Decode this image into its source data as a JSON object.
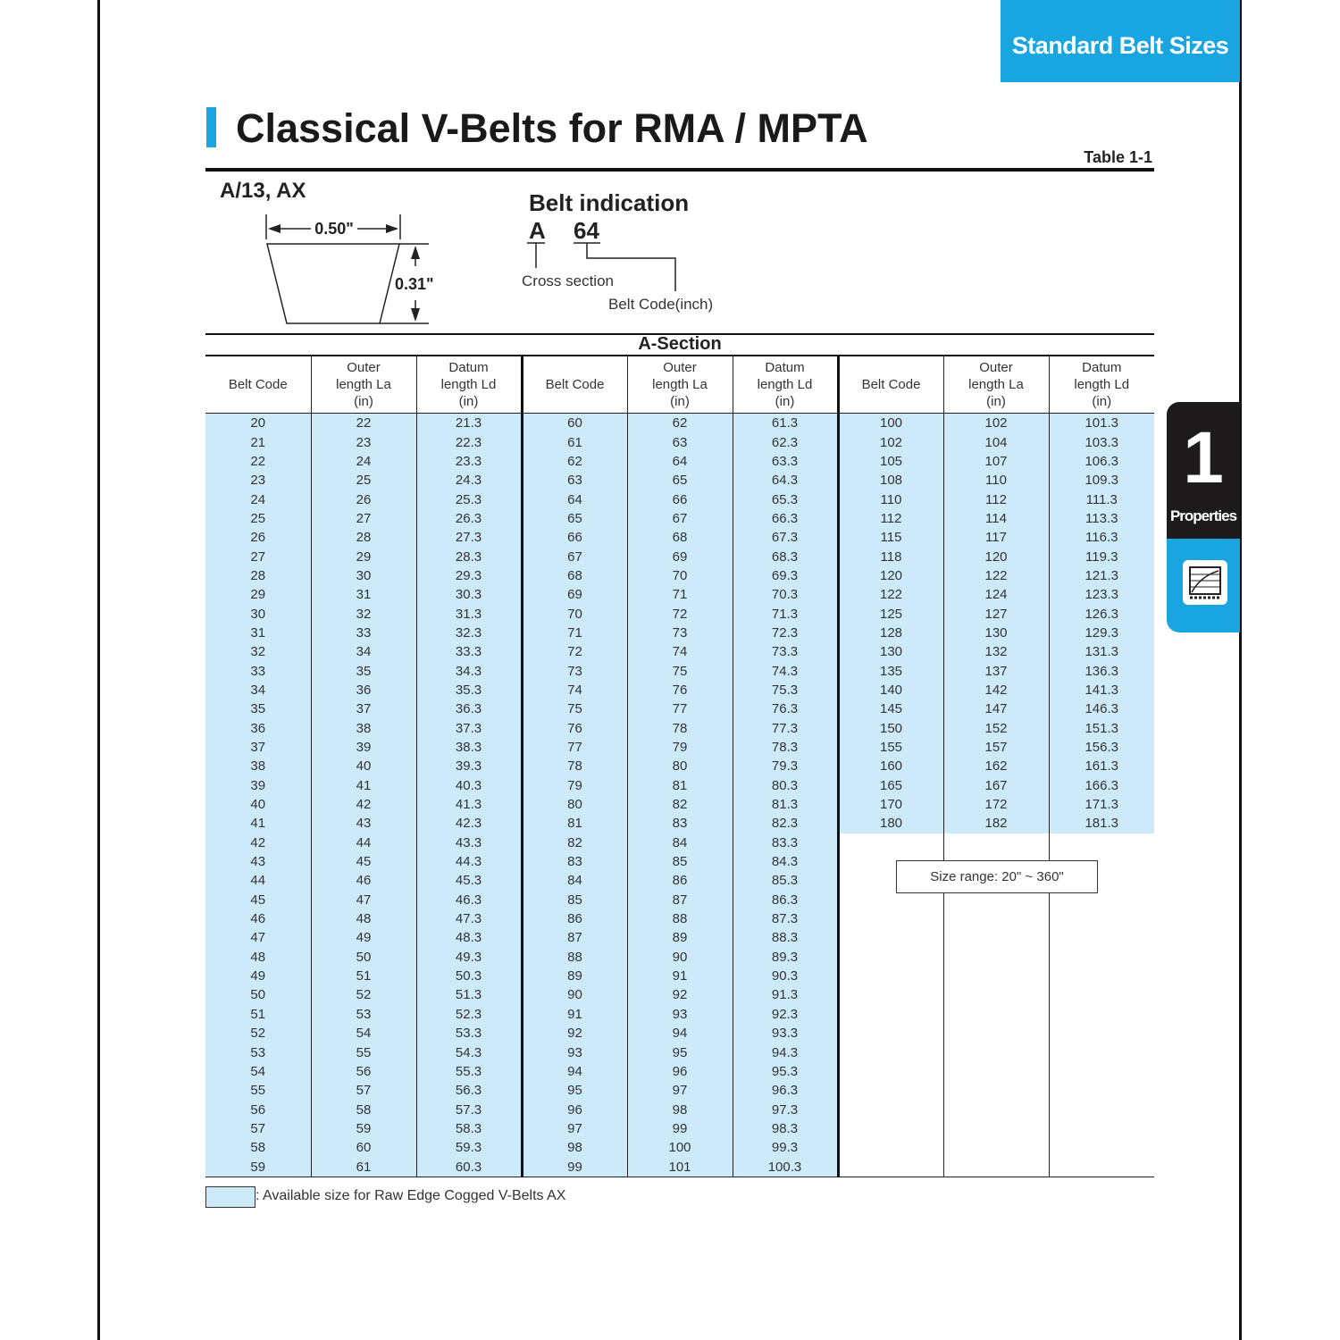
{
  "header_tab": "Standard Belt Sizes",
  "title": "Classical V-Belts for RMA / MPTA",
  "table_number": "Table 1-1",
  "cross_section_label": "A/13, AX",
  "diagram": {
    "top_width": "0.50\"",
    "height": "0.31\""
  },
  "belt_indication": {
    "title": "Belt indication",
    "section_letter": "A",
    "code_example": "64",
    "section_caption": "Cross section",
    "code_caption": "Belt Code(inch)"
  },
  "section_title": "A-Section",
  "columns": [
    "Belt Code",
    "Outer length La (in)",
    "Datum length Ld (in)"
  ],
  "groups": [
    {
      "rows": [
        [
          "20",
          "22",
          "21.3"
        ],
        [
          "21",
          "23",
          "22.3"
        ],
        [
          "22",
          "24",
          "23.3"
        ],
        [
          "23",
          "25",
          "24.3"
        ],
        [
          "24",
          "26",
          "25.3"
        ],
        [
          "25",
          "27",
          "26.3"
        ],
        [
          "26",
          "28",
          "27.3"
        ],
        [
          "27",
          "29",
          "28.3"
        ],
        [
          "28",
          "30",
          "29.3"
        ],
        [
          "29",
          "31",
          "30.3"
        ],
        [
          "30",
          "32",
          "31.3"
        ],
        [
          "31",
          "33",
          "32.3"
        ],
        [
          "32",
          "34",
          "33.3"
        ],
        [
          "33",
          "35",
          "34.3"
        ],
        [
          "34",
          "36",
          "35.3"
        ],
        [
          "35",
          "37",
          "36.3"
        ],
        [
          "36",
          "38",
          "37.3"
        ],
        [
          "37",
          "39",
          "38.3"
        ],
        [
          "38",
          "40",
          "39.3"
        ],
        [
          "39",
          "41",
          "40.3"
        ],
        [
          "40",
          "42",
          "41.3"
        ],
        [
          "41",
          "43",
          "42.3"
        ],
        [
          "42",
          "44",
          "43.3"
        ],
        [
          "43",
          "45",
          "44.3"
        ],
        [
          "44",
          "46",
          "45.3"
        ],
        [
          "45",
          "47",
          "46.3"
        ],
        [
          "46",
          "48",
          "47.3"
        ],
        [
          "47",
          "49",
          "48.3"
        ],
        [
          "48",
          "50",
          "49.3"
        ],
        [
          "49",
          "51",
          "50.3"
        ],
        [
          "50",
          "52",
          "51.3"
        ],
        [
          "51",
          "53",
          "52.3"
        ],
        [
          "52",
          "54",
          "53.3"
        ],
        [
          "53",
          "55",
          "54.3"
        ],
        [
          "54",
          "56",
          "55.3"
        ],
        [
          "55",
          "57",
          "56.3"
        ],
        [
          "56",
          "58",
          "57.3"
        ],
        [
          "57",
          "59",
          "58.3"
        ],
        [
          "58",
          "60",
          "59.3"
        ],
        [
          "59",
          "61",
          "60.3"
        ]
      ]
    },
    {
      "rows": [
        [
          "60",
          "62",
          "61.3"
        ],
        [
          "61",
          "63",
          "62.3"
        ],
        [
          "62",
          "64",
          "63.3"
        ],
        [
          "63",
          "65",
          "64.3"
        ],
        [
          "64",
          "66",
          "65.3"
        ],
        [
          "65",
          "67",
          "66.3"
        ],
        [
          "66",
          "68",
          "67.3"
        ],
        [
          "67",
          "69",
          "68.3"
        ],
        [
          "68",
          "70",
          "69.3"
        ],
        [
          "69",
          "71",
          "70.3"
        ],
        [
          "70",
          "72",
          "71.3"
        ],
        [
          "71",
          "73",
          "72.3"
        ],
        [
          "72",
          "74",
          "73.3"
        ],
        [
          "73",
          "75",
          "74.3"
        ],
        [
          "74",
          "76",
          "75.3"
        ],
        [
          "75",
          "77",
          "76.3"
        ],
        [
          "76",
          "78",
          "77.3"
        ],
        [
          "77",
          "79",
          "78.3"
        ],
        [
          "78",
          "80",
          "79.3"
        ],
        [
          "79",
          "81",
          "80.3"
        ],
        [
          "80",
          "82",
          "81.3"
        ],
        [
          "81",
          "83",
          "82.3"
        ],
        [
          "82",
          "84",
          "83.3"
        ],
        [
          "83",
          "85",
          "84.3"
        ],
        [
          "84",
          "86",
          "85.3"
        ],
        [
          "85",
          "87",
          "86.3"
        ],
        [
          "86",
          "88",
          "87.3"
        ],
        [
          "87",
          "89",
          "88.3"
        ],
        [
          "88",
          "90",
          "89.3"
        ],
        [
          "89",
          "91",
          "90.3"
        ],
        [
          "90",
          "92",
          "91.3"
        ],
        [
          "91",
          "93",
          "92.3"
        ],
        [
          "92",
          "94",
          "93.3"
        ],
        [
          "93",
          "95",
          "94.3"
        ],
        [
          "94",
          "96",
          "95.3"
        ],
        [
          "95",
          "97",
          "96.3"
        ],
        [
          "96",
          "98",
          "97.3"
        ],
        [
          "97",
          "99",
          "98.3"
        ],
        [
          "98",
          "100",
          "99.3"
        ],
        [
          "99",
          "101",
          "100.3"
        ]
      ]
    },
    {
      "rows": [
        [
          "100",
          "102",
          "101.3"
        ],
        [
          "102",
          "104",
          "103.3"
        ],
        [
          "105",
          "107",
          "106.3"
        ],
        [
          "108",
          "110",
          "109.3"
        ],
        [
          "110",
          "112",
          "111.3"
        ],
        [
          "112",
          "114",
          "113.3"
        ],
        [
          "115",
          "117",
          "116.3"
        ],
        [
          "118",
          "120",
          "119.3"
        ],
        [
          "120",
          "122",
          "121.3"
        ],
        [
          "122",
          "124",
          "123.3"
        ],
        [
          "125",
          "127",
          "126.3"
        ],
        [
          "128",
          "130",
          "129.3"
        ],
        [
          "130",
          "132",
          "131.3"
        ],
        [
          "135",
          "137",
          "136.3"
        ],
        [
          "140",
          "142",
          "141.3"
        ],
        [
          "145",
          "147",
          "146.3"
        ],
        [
          "150",
          "152",
          "151.3"
        ],
        [
          "155",
          "157",
          "156.3"
        ],
        [
          "160",
          "162",
          "161.3"
        ],
        [
          "165",
          "167",
          "166.3"
        ],
        [
          "170",
          "172",
          "171.3"
        ],
        [
          "180",
          "182",
          "181.3"
        ]
      ]
    }
  ],
  "size_range": "Size range: 20\" ~ 360\"",
  "legend_text": ": Available size for Raw Edge Cogged V-Belts AX",
  "side_tab": {
    "number": "1",
    "label": "Properties",
    "icon": "properties-chart-icon"
  },
  "colors": {
    "accent": "#19a6e0",
    "highlight": "#cdeafa"
  }
}
